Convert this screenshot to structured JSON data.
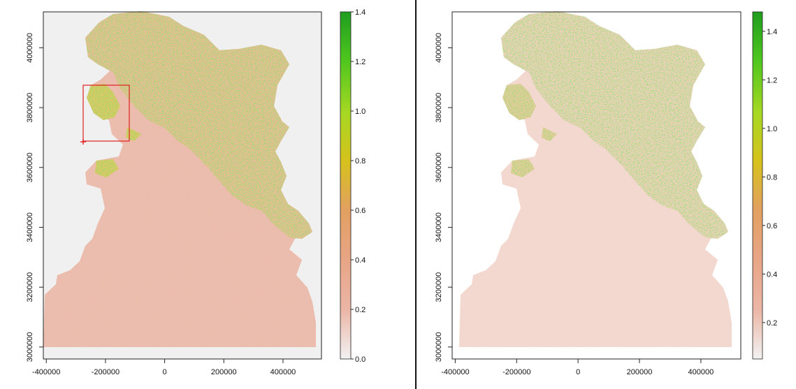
{
  "figure": {
    "divider_color": "#111111",
    "panels": [
      {
        "id": "left",
        "plot_background": "#f0f0f0",
        "x_ticks": [
          "-400000",
          "-200000",
          "0",
          "200000",
          "400000"
        ],
        "y_ticks": [
          "3000000",
          "3200000",
          "3400000",
          "3600000",
          "3800000",
          "4000000"
        ],
        "colorbar_ticks": [
          "0.0",
          "0.2",
          "0.4",
          "0.6",
          "0.8",
          "1.0",
          "1.2",
          "1.4"
        ],
        "has_selection_box": true,
        "selection_box_color": "#e02020"
      },
      {
        "id": "right",
        "plot_background": "#ffffff",
        "x_ticks": [
          "-400000",
          "-200000",
          "0",
          "200000",
          "400000"
        ],
        "y_ticks": [
          "3000000",
          "3200000",
          "3400000",
          "3600000",
          "3800000",
          "4000000"
        ],
        "colorbar_ticks": [
          "0.2",
          "0.4",
          "0.6",
          "0.8",
          "1.0",
          "1.2",
          "1.4"
        ],
        "has_selection_box": false
      }
    ]
  },
  "chart_data": [
    {
      "type": "heatmap",
      "title": "",
      "xlabel": "",
      "ylabel": "",
      "xlim": [
        -410000,
        530000
      ],
      "ylim": [
        2960000,
        4120000
      ],
      "x_ticks": [
        -400000,
        -200000,
        0,
        200000,
        400000
      ],
      "y_ticks": [
        3000000,
        3200000,
        3400000,
        3600000,
        3800000,
        4000000
      ],
      "colorbar": {
        "min": 0.0,
        "max": 1.4,
        "ticks": [
          0.0,
          0.2,
          0.4,
          0.6,
          0.8,
          1.0,
          1.2,
          1.4
        ],
        "colors": [
          "#f2f2f2",
          "#ebb5a5",
          "#e2a060",
          "#d6c21c",
          "#a6d822",
          "#4fc61e",
          "#1f9d1f"
        ]
      },
      "selection_box": {
        "x": [
          -275000,
          -120000
        ],
        "y": [
          3690000,
          3880000
        ]
      },
      "selection_marker": {
        "x": -275000,
        "y": 3690000
      },
      "grid": false
    },
    {
      "type": "heatmap",
      "title": "",
      "xlabel": "",
      "ylabel": "",
      "xlim": [
        -410000,
        530000
      ],
      "ylim": [
        2960000,
        4120000
      ],
      "x_ticks": [
        -400000,
        -200000,
        0,
        200000,
        400000
      ],
      "y_ticks": [
        3000000,
        3200000,
        3400000,
        3600000,
        3800000,
        4000000
      ],
      "colorbar": {
        "min": 0.05,
        "max": 1.48,
        "ticks": [
          0.2,
          0.4,
          0.6,
          0.8,
          1.0,
          1.2,
          1.4
        ],
        "colors": [
          "#f2f2f2",
          "#ebb5a5",
          "#e2a060",
          "#d6c21c",
          "#a6d822",
          "#4fc61e",
          "#1f9d1f"
        ]
      },
      "grid": false
    }
  ]
}
